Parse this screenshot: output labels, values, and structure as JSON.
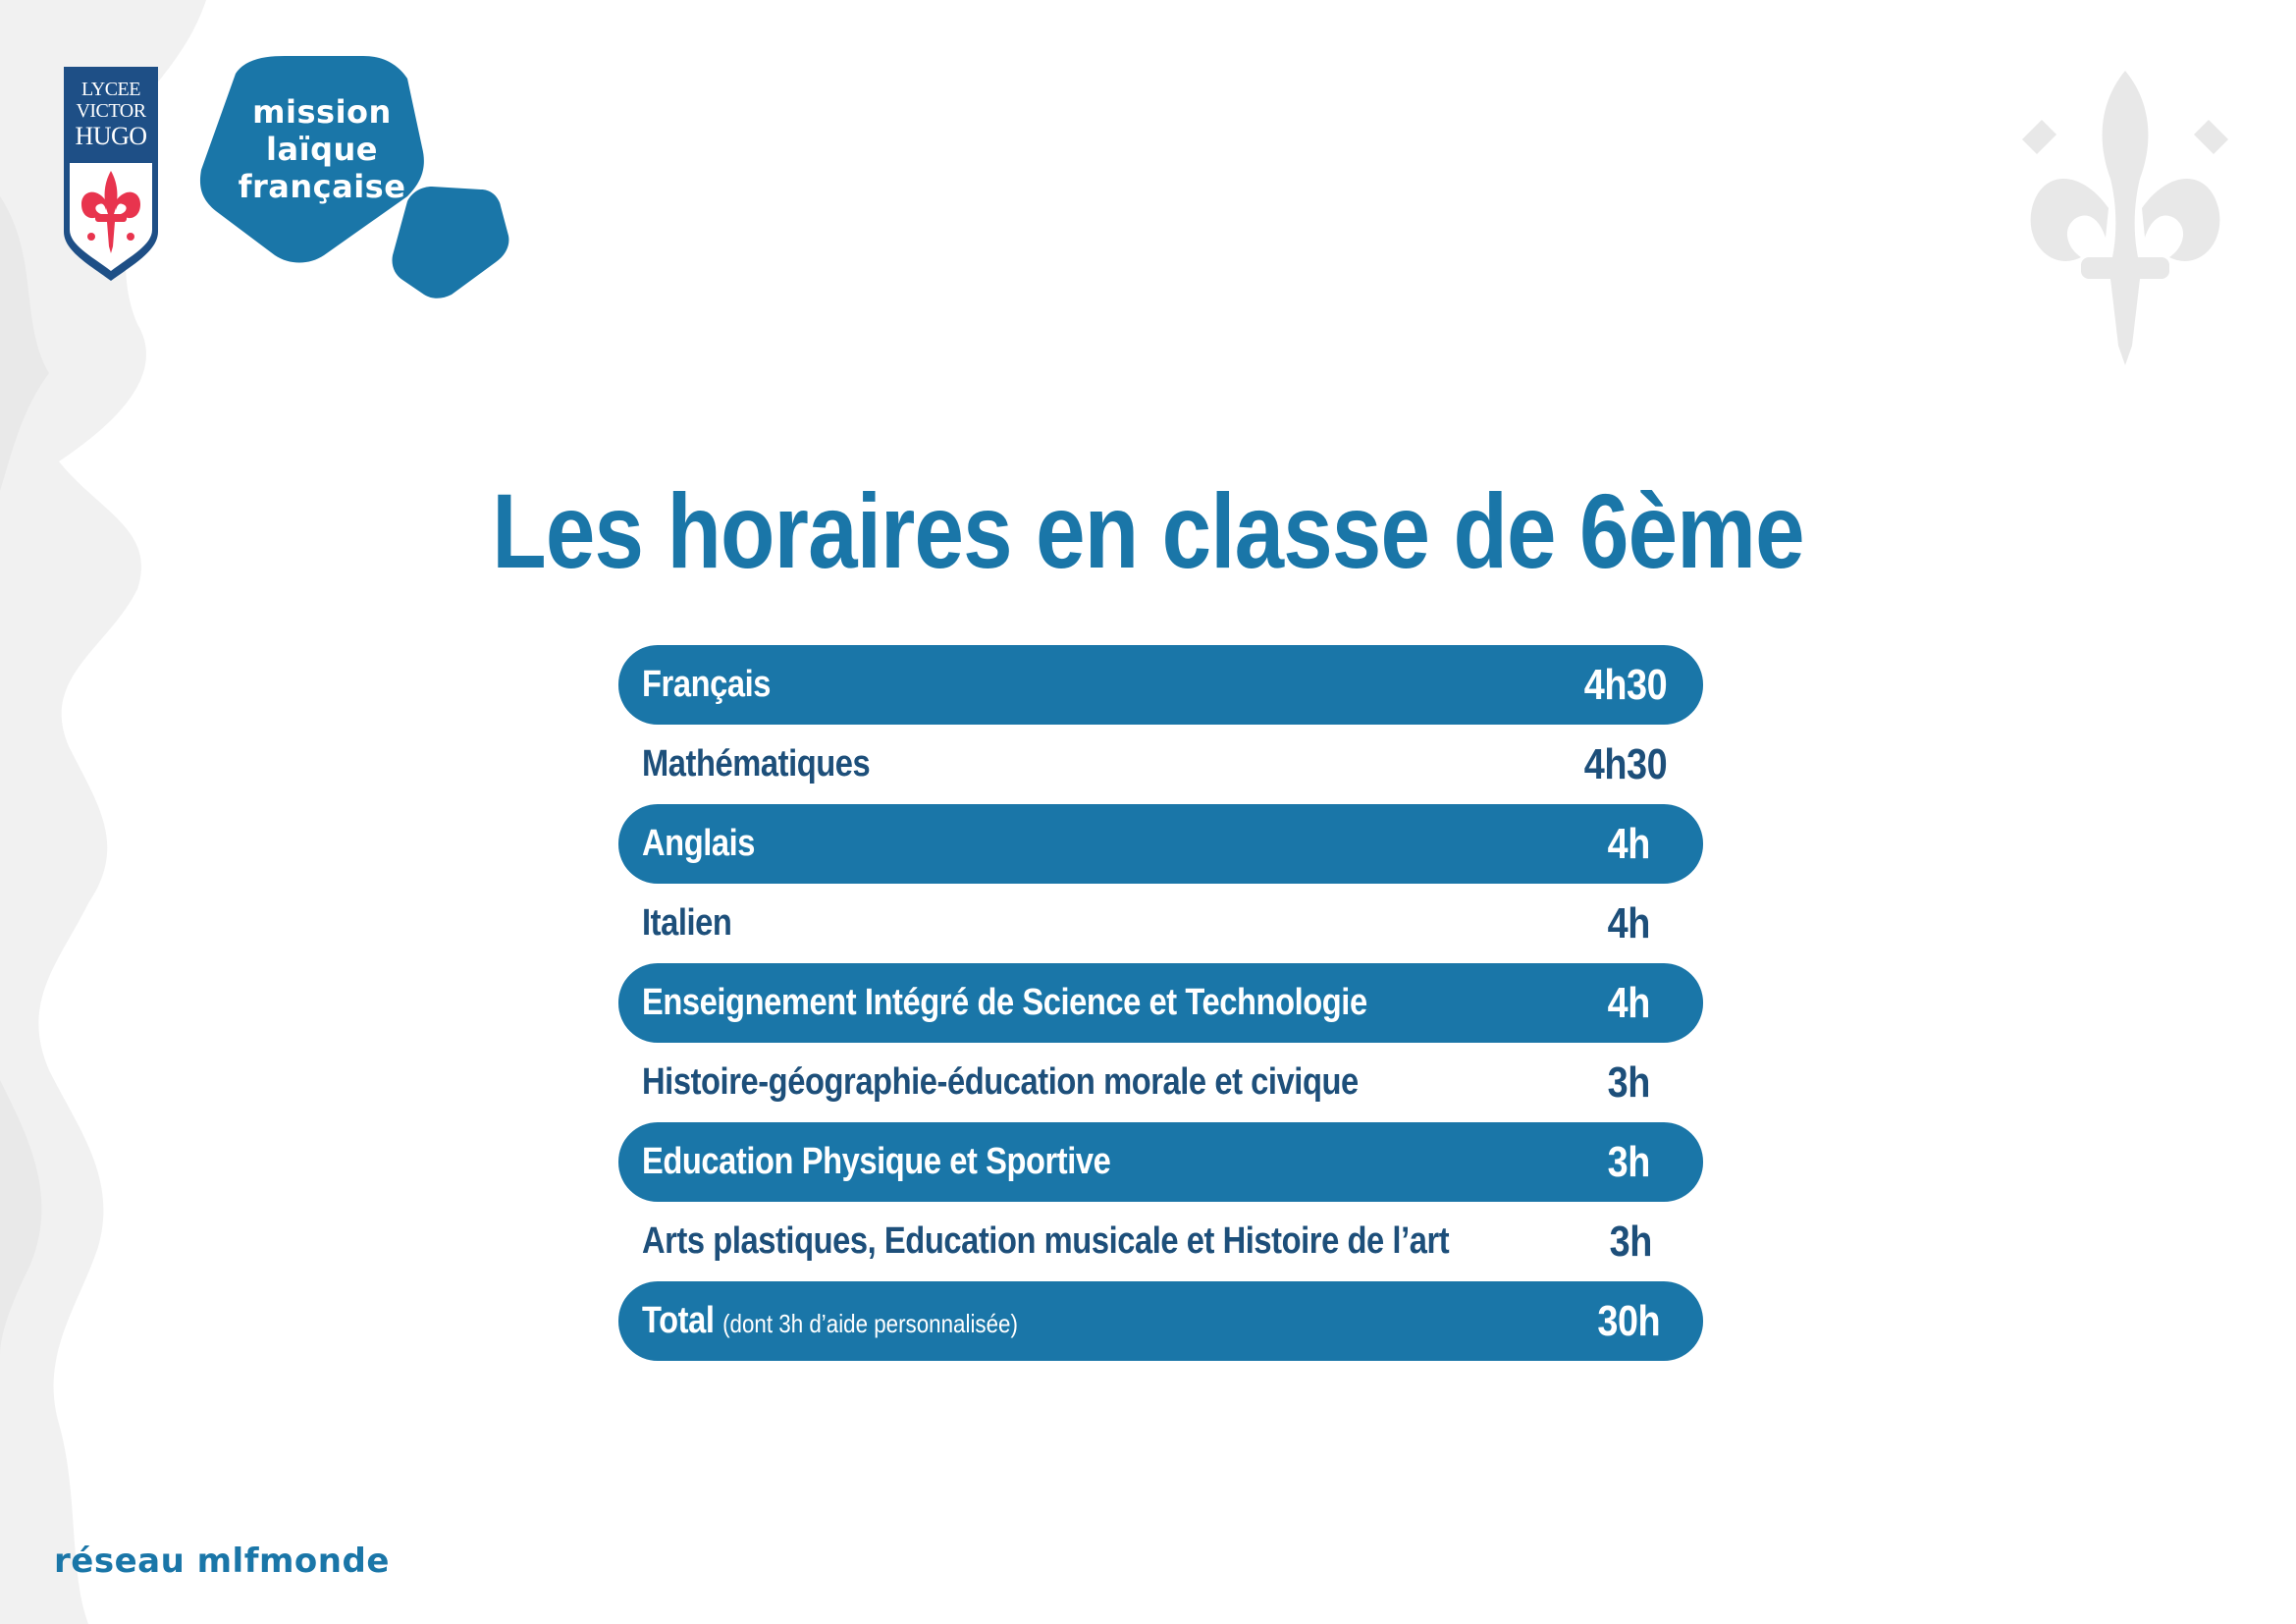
{
  "crest": {
    "line1": "LYCEE",
    "line2": "VICTOR",
    "line3": "HUGO"
  },
  "mlf_logo": {
    "line1": "mission",
    "line2": "laïque",
    "line3": "française"
  },
  "title": "Les horaires en classe de 6ème",
  "schedule": [
    {
      "subject": "Français",
      "hours": "4h30",
      "highlighted": true
    },
    {
      "subject": "Mathématiques",
      "hours": "4h30",
      "highlighted": false
    },
    {
      "subject": "Anglais",
      "hours": "4h",
      "highlighted": true
    },
    {
      "subject": "Italien",
      "hours": "4h",
      "highlighted": false
    },
    {
      "subject": "Enseignement Intégré de Science et Technologie",
      "hours": "4h",
      "highlighted": true
    },
    {
      "subject": "Histoire-géographie-éducation morale et civique",
      "hours": "3h",
      "highlighted": false
    },
    {
      "subject": "Education Physique et Sportive",
      "hours": "3h",
      "highlighted": true
    },
    {
      "subject": "Arts plastiques, Education musicale et Histoire de l’art",
      "hours": "3h",
      "highlighted": false
    },
    {
      "subject": "Total",
      "note": "(dont 3h d’aide personnalisée)",
      "hours": "30h",
      "highlighted": true
    }
  ],
  "network": "réseau mlfmonde",
  "colors": {
    "primary_blue": "#1a76a8",
    "dark_blue": "#1d4f7a",
    "crest_red": "#e8344e",
    "crest_navy": "#1e4f86"
  }
}
